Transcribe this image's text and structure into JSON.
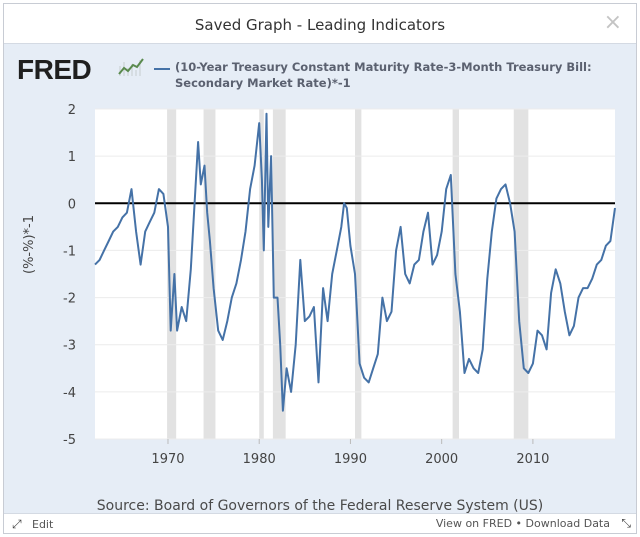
{
  "window": {
    "title": "Saved Graph - Leading Indicators",
    "close_glyph": "×"
  },
  "brand": {
    "logo_text": "FRED",
    "logo_icon": "fred-trend-icon"
  },
  "legend": {
    "line_color": "#4572a7",
    "text": "(10-Year Treasury Constant Maturity Rate-3-Month Treasury Bill: Secondary Market Rate)*-1"
  },
  "source": "Source: Board of Governors of the Federal Reserve System (US)",
  "footer": {
    "edit_label": "Edit",
    "edit_icon": "expand-arrows-icon",
    "view_label": "View on FRED",
    "separator": "•",
    "download_label": "Download Data",
    "resize_icon": "resize-arrows-icon"
  },
  "colors": {
    "line": "#4572a7",
    "recession": "#e2e2e2",
    "zero_line": "#000000",
    "background": "#e6edf6"
  },
  "chart_data": {
    "type": "line",
    "title": "",
    "xlabel": "",
    "ylabel": "(%-%)*-1",
    "xlim": [
      1962,
      2019
    ],
    "ylim": [
      -5,
      2
    ],
    "yticks": [
      2,
      1,
      0,
      -1,
      -2,
      -3,
      -4,
      -5
    ],
    "xticks": [
      1970,
      1980,
      1990,
      2000,
      2010
    ],
    "grid": "horizontal",
    "reference_line": 0,
    "recession_bands": [
      [
        1969.9,
        1970.9
      ],
      [
        1973.9,
        1975.2
      ],
      [
        1980.0,
        1980.5
      ],
      [
        1981.5,
        1982.9
      ],
      [
        1990.5,
        1991.2
      ],
      [
        2001.2,
        2001.9
      ],
      [
        2007.9,
        2009.5
      ]
    ],
    "series": [
      {
        "name": "(10-Year Treasury Constant Maturity Rate-3-Month Treasury Bill: Secondary Market Rate)*-1",
        "x": [
          1962.0,
          1962.5,
          1963.0,
          1963.5,
          1964.0,
          1964.5,
          1965.0,
          1965.5,
          1966.0,
          1966.5,
          1967.0,
          1967.5,
          1968.0,
          1968.5,
          1969.0,
          1969.5,
          1970.0,
          1970.3,
          1970.7,
          1971.0,
          1971.5,
          1972.0,
          1972.5,
          1973.0,
          1973.3,
          1973.6,
          1974.0,
          1974.3,
          1974.6,
          1975.0,
          1975.5,
          1976.0,
          1976.5,
          1977.0,
          1977.5,
          1978.0,
          1978.5,
          1979.0,
          1979.5,
          1980.0,
          1980.3,
          1980.5,
          1980.8,
          1981.0,
          1981.3,
          1981.6,
          1982.0,
          1982.3,
          1982.6,
          1983.0,
          1983.5,
          1984.0,
          1984.5,
          1985.0,
          1985.5,
          1986.0,
          1986.5,
          1987.0,
          1987.5,
          1988.0,
          1988.5,
          1989.0,
          1989.3,
          1989.6,
          1990.0,
          1990.5,
          1991.0,
          1991.5,
          1992.0,
          1992.5,
          1993.0,
          1993.5,
          1994.0,
          1994.5,
          1995.0,
          1995.5,
          1996.0,
          1996.5,
          1997.0,
          1997.5,
          1998.0,
          1998.5,
          1999.0,
          1999.5,
          2000.0,
          2000.5,
          2001.0,
          2001.5,
          2002.0,
          2002.5,
          2003.0,
          2003.5,
          2004.0,
          2004.5,
          2005.0,
          2005.5,
          2006.0,
          2006.5,
          2007.0,
          2007.5,
          2008.0,
          2008.5,
          2009.0,
          2009.5,
          2010.0,
          2010.5,
          2011.0,
          2011.5,
          2012.0,
          2012.5,
          2013.0,
          2013.5,
          2014.0,
          2014.5,
          2015.0,
          2015.5,
          2016.0,
          2016.5,
          2017.0,
          2017.5,
          2018.0,
          2018.5,
          2019.0
        ],
        "values": [
          -1.3,
          -1.2,
          -1.0,
          -0.8,
          -0.6,
          -0.5,
          -0.3,
          -0.2,
          0.3,
          -0.6,
          -1.3,
          -0.6,
          -0.4,
          -0.2,
          0.3,
          0.2,
          -0.5,
          -2.7,
          -1.5,
          -2.7,
          -2.2,
          -2.5,
          -1.4,
          0.3,
          1.3,
          0.4,
          0.8,
          -0.2,
          -0.8,
          -1.8,
          -2.7,
          -2.9,
          -2.5,
          -2.0,
          -1.7,
          -1.2,
          -0.6,
          0.3,
          0.8,
          1.7,
          0.5,
          -1.0,
          1.9,
          -0.5,
          1.0,
          -2.0,
          -2.0,
          -3.0,
          -4.4,
          -3.5,
          -4.0,
          -3.0,
          -1.2,
          -2.5,
          -2.4,
          -2.2,
          -3.8,
          -1.8,
          -2.5,
          -1.5,
          -1.0,
          -0.5,
          0.0,
          -0.1,
          -0.9,
          -1.5,
          -3.4,
          -3.7,
          -3.8,
          -3.5,
          -3.2,
          -2.0,
          -2.5,
          -2.3,
          -1.0,
          -0.5,
          -1.5,
          -1.7,
          -1.3,
          -1.2,
          -0.6,
          -0.2,
          -1.3,
          -1.1,
          -0.6,
          0.3,
          0.6,
          -1.5,
          -2.3,
          -3.6,
          -3.3,
          -3.5,
          -3.6,
          -3.1,
          -1.6,
          -0.6,
          0.1,
          0.3,
          0.4,
          0.0,
          -0.6,
          -2.5,
          -3.5,
          -3.6,
          -3.4,
          -2.7,
          -2.8,
          -3.1,
          -1.9,
          -1.4,
          -1.7,
          -2.3,
          -2.8,
          -2.6,
          -2.0,
          -1.8,
          -1.8,
          -1.6,
          -1.3,
          -1.2,
          -0.9,
          -0.8,
          -0.1
        ]
      }
    ]
  }
}
